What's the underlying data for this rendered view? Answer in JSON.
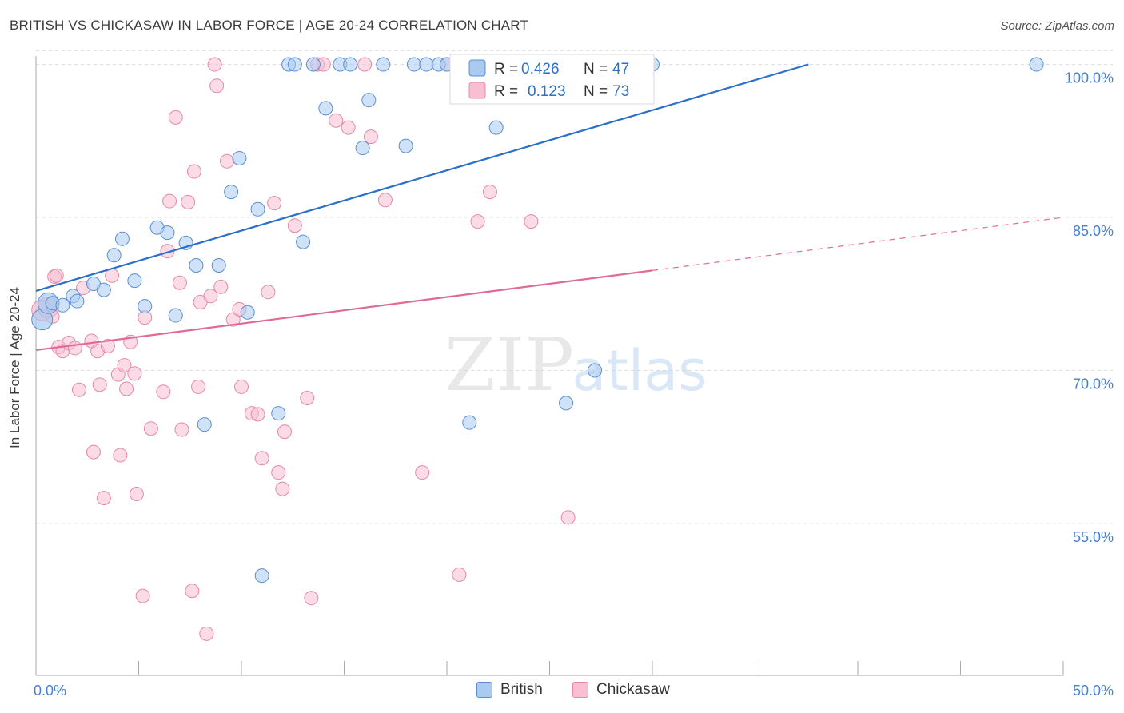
{
  "title": "BRITISH VS CHICKASAW IN LABOR FORCE | AGE 20-24 CORRELATION CHART",
  "source": "Source: ZipAtlas.com",
  "watermark": {
    "zip": "ZIP",
    "atlas": "atlas"
  },
  "colors": {
    "british_fill": "#aacaf0",
    "british_stroke": "#5b8fd1",
    "british_line": "#2a6fcb",
    "chickasaw_fill": "#f8bfd2",
    "chickasaw_stroke": "#e688a8",
    "chickasaw_line": "#e06a95",
    "tick_label": "#4a7fd0",
    "grid": "#dddddd"
  },
  "legend": {
    "items": [
      {
        "name": "British",
        "r_label": "R =",
        "r_value": "0.426",
        "n_label": "N =",
        "n_value": "47"
      },
      {
        "name": "Chickasaw",
        "r_label": "R =",
        "r_value": "0.123",
        "n_label": "N =",
        "n_value": "73"
      }
    ]
  },
  "chart_data": {
    "type": "scatter",
    "title": "BRITISH VS CHICKASAW IN LABOR FORCE | AGE 20-24 CORRELATION CHART",
    "xlabel": "",
    "ylabel": "In Labor Force | Age 20-24",
    "xlim": [
      0,
      50
    ],
    "ylim": [
      40,
      101.5
    ],
    "x_tick_labels": [
      {
        "value": 0,
        "label": "0.0%"
      },
      {
        "value": 50,
        "label": "50.0%"
      }
    ],
    "x_minor_ticks": [
      5,
      10,
      15,
      20,
      25,
      30,
      35,
      40,
      45
    ],
    "y_ticks": [
      {
        "value": 55,
        "label": "55.0%"
      },
      {
        "value": 70,
        "label": "70.0%"
      },
      {
        "value": 85,
        "label": "85.0%"
      },
      {
        "value": 100,
        "label": "100.0%"
      }
    ],
    "grid": true,
    "legend_position": "top-center",
    "series": [
      {
        "name": "British",
        "r": 0.426,
        "n": 47,
        "trend": {
          "x0": 0,
          "y0": 77.8,
          "x1": 37.6,
          "y1": 100.0,
          "solid_until": 37.6
        },
        "points": [
          [
            0.3,
            75.0
          ],
          [
            0.6,
            76.6
          ],
          [
            0.8,
            76.6
          ],
          [
            1.3,
            76.4
          ],
          [
            1.8,
            77.3
          ],
          [
            2.0,
            76.8
          ],
          [
            2.8,
            78.5
          ],
          [
            3.3,
            77.9
          ],
          [
            3.8,
            81.3
          ],
          [
            4.2,
            82.9
          ],
          [
            4.8,
            78.8
          ],
          [
            5.3,
            76.3
          ],
          [
            5.9,
            84.0
          ],
          [
            6.4,
            83.5
          ],
          [
            6.8,
            75.4
          ],
          [
            7.3,
            82.5
          ],
          [
            7.8,
            80.3
          ],
          [
            8.2,
            64.7
          ],
          [
            8.9,
            80.3
          ],
          [
            9.5,
            87.5
          ],
          [
            9.9,
            90.8
          ],
          [
            10.3,
            75.7
          ],
          [
            10.8,
            85.8
          ],
          [
            11.0,
            49.9
          ],
          [
            11.8,
            65.8
          ],
          [
            12.3,
            100.0
          ],
          [
            12.6,
            100.0
          ],
          [
            13.0,
            82.6
          ],
          [
            13.5,
            100.0
          ],
          [
            14.1,
            95.7
          ],
          [
            14.8,
            100.0
          ],
          [
            15.3,
            100.0
          ],
          [
            15.9,
            91.8
          ],
          [
            16.2,
            96.5
          ],
          [
            16.9,
            100.0
          ],
          [
            18.0,
            92.0
          ],
          [
            18.4,
            100.0
          ],
          [
            19.0,
            100.0
          ],
          [
            19.6,
            100.0
          ],
          [
            20.0,
            100.0
          ],
          [
            20.9,
            100.0
          ],
          [
            21.1,
            64.9
          ],
          [
            22.4,
            93.8
          ],
          [
            25.8,
            66.8
          ],
          [
            27.2,
            70.0
          ],
          [
            30.0,
            100.0
          ],
          [
            48.7,
            100.0
          ]
        ]
      },
      {
        "name": "Chickasaw",
        "r": 0.123,
        "n": 73,
        "trend": {
          "x0": 0,
          "y0": 72.0,
          "x1": 50,
          "y1": 85.0,
          "solid_until": 30.0
        },
        "points": [
          [
            0.3,
            75.9
          ],
          [
            0.6,
            76.2
          ],
          [
            0.8,
            75.3
          ],
          [
            0.9,
            79.2
          ],
          [
            1.0,
            79.3
          ],
          [
            1.1,
            72.3
          ],
          [
            1.3,
            71.9
          ],
          [
            1.6,
            72.7
          ],
          [
            1.9,
            72.2
          ],
          [
            2.1,
            68.1
          ],
          [
            2.3,
            78.1
          ],
          [
            2.7,
            72.9
          ],
          [
            2.8,
            62.0
          ],
          [
            3.0,
            71.9
          ],
          [
            3.1,
            68.6
          ],
          [
            3.3,
            57.5
          ],
          [
            3.5,
            72.4
          ],
          [
            3.7,
            79.3
          ],
          [
            4.0,
            69.6
          ],
          [
            4.1,
            61.7
          ],
          [
            4.3,
            70.5
          ],
          [
            4.4,
            68.2
          ],
          [
            4.6,
            72.8
          ],
          [
            4.8,
            69.7
          ],
          [
            4.9,
            57.9
          ],
          [
            5.2,
            47.9
          ],
          [
            5.3,
            75.2
          ],
          [
            5.6,
            64.3
          ],
          [
            6.2,
            67.9
          ],
          [
            6.4,
            81.7
          ],
          [
            6.5,
            86.6
          ],
          [
            6.8,
            94.8
          ],
          [
            7.0,
            78.6
          ],
          [
            7.1,
            64.2
          ],
          [
            7.4,
            86.5
          ],
          [
            7.6,
            48.4
          ],
          [
            7.7,
            89.5
          ],
          [
            7.9,
            68.4
          ],
          [
            8.0,
            76.7
          ],
          [
            8.3,
            44.2
          ],
          [
            8.5,
            77.3
          ],
          [
            8.7,
            100.0
          ],
          [
            8.8,
            97.9
          ],
          [
            9.0,
            78.2
          ],
          [
            9.3,
            90.5
          ],
          [
            9.6,
            75.0
          ],
          [
            9.9,
            76.0
          ],
          [
            10.0,
            68.4
          ],
          [
            10.5,
            65.8
          ],
          [
            10.8,
            65.7
          ],
          [
            11.0,
            61.4
          ],
          [
            11.3,
            77.7
          ],
          [
            11.6,
            86.4
          ],
          [
            11.8,
            60.0
          ],
          [
            12.0,
            58.4
          ],
          [
            12.1,
            64.0
          ],
          [
            12.6,
            84.2
          ],
          [
            13.2,
            67.3
          ],
          [
            13.4,
            47.7
          ],
          [
            13.7,
            100.0
          ],
          [
            14.0,
            100.0
          ],
          [
            14.6,
            94.5
          ],
          [
            15.2,
            93.8
          ],
          [
            16.0,
            100.0
          ],
          [
            16.3,
            92.9
          ],
          [
            17.0,
            86.7
          ],
          [
            18.8,
            60.0
          ],
          [
            20.0,
            100.0
          ],
          [
            20.6,
            50.0
          ],
          [
            21.5,
            84.6
          ],
          [
            22.1,
            87.5
          ],
          [
            24.1,
            84.6
          ],
          [
            25.9,
            55.6
          ]
        ]
      }
    ]
  }
}
